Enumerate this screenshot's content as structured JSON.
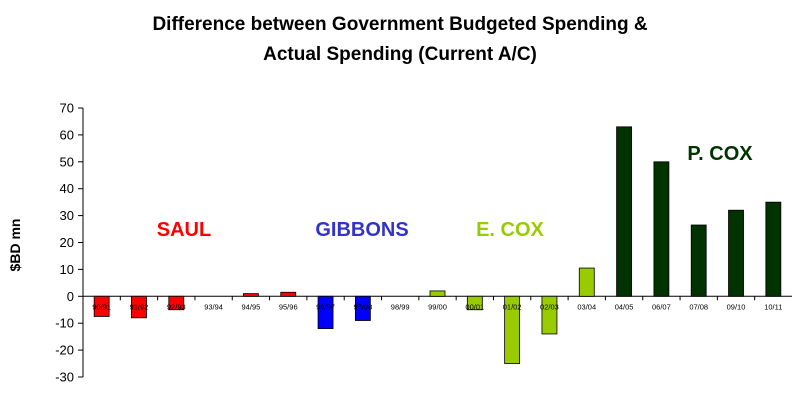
{
  "chart_data": {
    "type": "bar",
    "title_lines": [
      "Difference between Government Budgeted Spending &",
      "Actual Spending (Current A/C)"
    ],
    "xlabel": "",
    "ylabel": "$BD mn",
    "ylim": [
      -30,
      70
    ],
    "yticks": [
      -30,
      -20,
      -10,
      0,
      10,
      20,
      30,
      40,
      50,
      60,
      70
    ],
    "grid": false,
    "categories": [
      "90/91",
      "91/92",
      "92/93",
      "93/94",
      "94/95",
      "95/96",
      "96/97",
      "97/98",
      "98/99",
      "99/00",
      "00/01",
      "01/02",
      "02/03",
      "03/04",
      "04/05",
      "06/07",
      "07/08",
      "09/10",
      "10/11"
    ],
    "values": [
      -7.5,
      -8,
      -5,
      0,
      1,
      1.5,
      -12,
      -9,
      0,
      2,
      -5,
      -25,
      -14,
      10.5,
      63,
      50,
      26.5,
      32,
      35
    ],
    "bar_colors": [
      "#ff0000",
      "#ff0000",
      "#ff0000",
      "#ff0000",
      "#ff0000",
      "#ff0000",
      "#0000ff",
      "#0000ff",
      "#0000ff",
      "#99cc00",
      "#99cc00",
      "#99cc00",
      "#99cc00",
      "#99cc00",
      "#003300",
      "#003300",
      "#003300",
      "#003300",
      "#003300"
    ],
    "annotations": [
      {
        "text": "SAUL",
        "color": "#ff0000"
      },
      {
        "text": "GIBBONS",
        "color": "#3333cc"
      },
      {
        "text": "E. COX",
        "color": "#99cc00"
      },
      {
        "text": "P. COX",
        "color": "#003300"
      }
    ]
  }
}
